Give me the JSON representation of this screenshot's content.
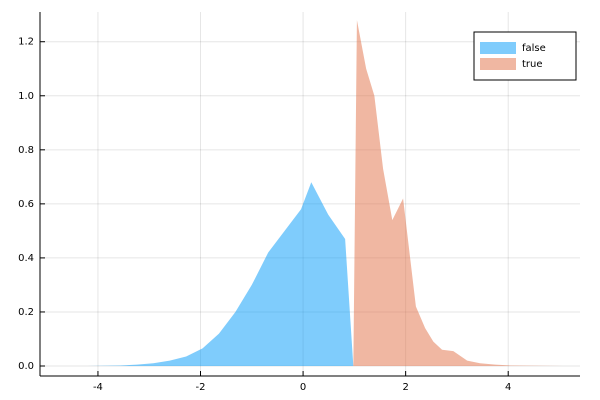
{
  "chart_data": {
    "type": "area",
    "xlim": [
      -5.13,
      5.4
    ],
    "ylim": [
      -0.037,
      1.31
    ],
    "xticks": [
      -4,
      -2,
      0,
      2,
      4
    ],
    "yticks": [
      {
        "value": 0,
        "label": "0.0"
      },
      0.2,
      0.4,
      0.6,
      0.8,
      {
        "value": 1,
        "label": "1.0"
      },
      1.2
    ],
    "grid": true,
    "legend": "top-right",
    "series": [
      {
        "name": "false",
        "color": "#009af9",
        "x": [
          -4.84,
          -4.2,
          -3.56,
          -3.24,
          -2.92,
          -2.6,
          -2.28,
          -1.96,
          -1.64,
          -1.32,
          -1.0,
          -0.68,
          -0.36,
          -0.04,
          0.16,
          0.49,
          0.82,
          0.98
        ],
        "values": [
          0,
          0,
          0.002,
          0.005,
          0.01,
          0.02,
          0.035,
          0.065,
          0.12,
          0.2,
          0.3,
          0.42,
          0.5,
          0.58,
          0.68,
          0.56,
          0.47,
          0
        ]
      },
      {
        "name": "true",
        "color": "#e26f46",
        "x": [
          0.98,
          1.05,
          1.23,
          1.39,
          1.56,
          1.74,
          1.95,
          2.2,
          2.38,
          2.54,
          2.71,
          2.93,
          3.2,
          3.45,
          3.75,
          4.04,
          5.07
        ],
        "values": [
          0,
          1.28,
          1.1,
          1.0,
          0.73,
          0.54,
          0.62,
          0.22,
          0.14,
          0.09,
          0.06,
          0.055,
          0.02,
          0.01,
          0.005,
          0.002,
          0
        ]
      }
    ]
  }
}
